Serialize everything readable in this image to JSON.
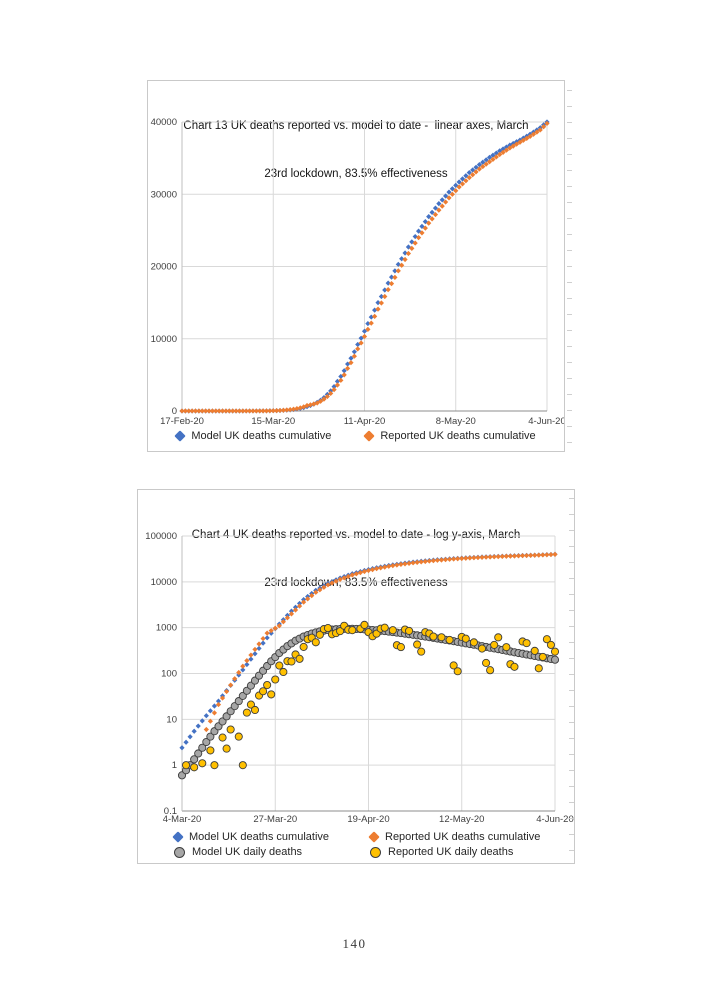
{
  "page": {
    "number": "140"
  },
  "series_data": {
    "model_cumulative": [
      [
        16,
        2.4
      ],
      [
        19,
        5.5
      ],
      [
        22,
        12
      ],
      [
        25,
        25
      ],
      [
        28,
        55
      ],
      [
        31,
        120
      ],
      [
        34,
        270
      ],
      [
        37,
        600
      ],
      [
        40,
        1200
      ],
      [
        43,
        2300
      ],
      [
        46,
        4100
      ],
      [
        49,
        6500
      ],
      [
        52,
        9200
      ],
      [
        55,
        12100
      ],
      [
        58,
        15000
      ],
      [
        61,
        17700
      ],
      [
        64,
        20300
      ],
      [
        67,
        22700
      ],
      [
        70,
        24900
      ],
      [
        73,
        26900
      ],
      [
        76,
        28700
      ],
      [
        79,
        30300
      ],
      [
        82,
        31700
      ],
      [
        85,
        33000
      ],
      [
        88,
        34100
      ],
      [
        91,
        35100
      ],
      [
        94,
        36000
      ],
      [
        97,
        36800
      ],
      [
        100,
        37500
      ],
      [
        103,
        38300
      ],
      [
        106,
        39200
      ],
      [
        108,
        40000
      ]
    ],
    "reported_cumulative": [
      [
        22,
        6
      ],
      [
        25,
        21
      ],
      [
        28,
        56
      ],
      [
        31,
        144
      ],
      [
        34,
        335
      ],
      [
        37,
        760
      ],
      [
        40,
        1100
      ],
      [
        43,
        2000
      ],
      [
        46,
        3600
      ],
      [
        49,
        5900
      ],
      [
        52,
        8600
      ],
      [
        55,
        11300
      ],
      [
        58,
        14100
      ],
      [
        61,
        16800
      ],
      [
        64,
        19400
      ],
      [
        67,
        21800
      ],
      [
        70,
        24000
      ],
      [
        73,
        26000
      ],
      [
        76,
        27800
      ],
      [
        79,
        29500
      ],
      [
        82,
        31000
      ],
      [
        85,
        32300
      ],
      [
        88,
        33500
      ],
      [
        91,
        34500
      ],
      [
        94,
        35500
      ],
      [
        97,
        36400
      ],
      [
        100,
        37200
      ],
      [
        103,
        38000
      ],
      [
        106,
        38900
      ],
      [
        108,
        39800
      ]
    ],
    "model_daily": [
      [
        16,
        0.6
      ],
      [
        18,
        1.0
      ],
      [
        20,
        1.8
      ],
      [
        22,
        3.2
      ],
      [
        24,
        5.5
      ],
      [
        26,
        9
      ],
      [
        28,
        15
      ],
      [
        30,
        25
      ],
      [
        32,
        42
      ],
      [
        34,
        70
      ],
      [
        36,
        115
      ],
      [
        38,
        185
      ],
      [
        40,
        280
      ],
      [
        42,
        395
      ],
      [
        44,
        520
      ],
      [
        46,
        640
      ],
      [
        48,
        745
      ],
      [
        50,
        830
      ],
      [
        52,
        890
      ],
      [
        54,
        925
      ],
      [
        56,
        945
      ],
      [
        58,
        945
      ],
      [
        60,
        930
      ],
      [
        62,
        905
      ],
      [
        64,
        875
      ],
      [
        66,
        840
      ],
      [
        68,
        800
      ],
      [
        70,
        760
      ],
      [
        72,
        720
      ],
      [
        74,
        680
      ],
      [
        76,
        640
      ],
      [
        78,
        600
      ],
      [
        80,
        560
      ],
      [
        82,
        525
      ],
      [
        84,
        490
      ],
      [
        86,
        455
      ],
      [
        88,
        425
      ],
      [
        90,
        395
      ],
      [
        92,
        365
      ],
      [
        94,
        340
      ],
      [
        96,
        315
      ],
      [
        98,
        290
      ],
      [
        100,
        270
      ],
      [
        102,
        250
      ],
      [
        104,
        232
      ],
      [
        106,
        215
      ],
      [
        108,
        200
      ]
    ],
    "reported_daily": [
      [
        17,
        1.0
      ],
      [
        19,
        0.9
      ],
      [
        21,
        1.1
      ],
      [
        23,
        2.1
      ],
      [
        24,
        1.0
      ],
      [
        26,
        4
      ],
      [
        27,
        2.3
      ],
      [
        28,
        6
      ],
      [
        30,
        4.2
      ],
      [
        31,
        1.0
      ],
      [
        32,
        14
      ],
      [
        33,
        21
      ],
      [
        34,
        16
      ],
      [
        35,
        33
      ],
      [
        36,
        41
      ],
      [
        37,
        56
      ],
      [
        38,
        35
      ],
      [
        39,
        74
      ],
      [
        40,
        149
      ],
      [
        41,
        108
      ],
      [
        42,
        186
      ],
      [
        43,
        183
      ],
      [
        44,
        260
      ],
      [
        45,
        209
      ],
      [
        46,
        380
      ],
      [
        47,
        560
      ],
      [
        48,
        605
      ],
      [
        49,
        480
      ],
      [
        50,
        700
      ],
      [
        51,
        930
      ],
      [
        52,
        980
      ],
      [
        53,
        717
      ],
      [
        54,
        760
      ],
      [
        55,
        840
      ],
      [
        56,
        1100
      ],
      [
        57,
        898
      ],
      [
        58,
        881
      ],
      [
        60,
        950
      ],
      [
        61,
        1152
      ],
      [
        62,
        796
      ],
      [
        63,
        650
      ],
      [
        64,
        740
      ],
      [
        65,
        950
      ],
      [
        66,
        998
      ],
      [
        68,
        880
      ],
      [
        69,
        415
      ],
      [
        70,
        377
      ],
      [
        71,
        910
      ],
      [
        72,
        850
      ],
      [
        74,
        430
      ],
      [
        75,
        300
      ],
      [
        76,
        798
      ],
      [
        77,
        745
      ],
      [
        78,
        640
      ],
      [
        80,
        618
      ],
      [
        82,
        540
      ],
      [
        83,
        150
      ],
      [
        84,
        112
      ],
      [
        85,
        630
      ],
      [
        86,
        575
      ],
      [
        88,
        478
      ],
      [
        90,
        350
      ],
      [
        91,
        170
      ],
      [
        92,
        118
      ],
      [
        93,
        420
      ],
      [
        94,
        615
      ],
      [
        96,
        376
      ],
      [
        97,
        160
      ],
      [
        98,
        140
      ],
      [
        100,
        500
      ],
      [
        101,
        460
      ],
      [
        103,
        312
      ],
      [
        104,
        130
      ],
      [
        105,
        230
      ],
      [
        106,
        560
      ],
      [
        107,
        420
      ],
      [
        108,
        300
      ]
    ]
  },
  "chart_data": [
    {
      "type": "scatter",
      "title": "Chart 13 UK deaths reported vs. model to date -  linear axes, March 23rd lockdown, 83.5% effectiveness",
      "title_lines": [
        "Chart 13 UK deaths reported vs. model to date -  linear axes, March",
        "23rd lockdown, 83.5% effectiveness"
      ],
      "log_y": false,
      "grid": true,
      "legend_position": "bottom",
      "xlabel": "",
      "ylabel": "",
      "x_tick_labels": [
        "17-Feb-20",
        "15-Mar-20",
        "11-Apr-20",
        "8-May-20",
        "4-Jun-20"
      ],
      "x_tick_days": [
        0,
        27,
        54,
        81,
        108
      ],
      "xlim_days": [
        0,
        108
      ],
      "y_ticks": [
        0,
        10000,
        20000,
        30000,
        40000
      ],
      "y_tick_labels": [
        "0",
        "10000",
        "20000",
        "30000",
        "40000"
      ],
      "ylim": [
        0,
        40000
      ],
      "series": [
        {
          "name": "Model UK deaths cumulative",
          "color": "#4472C4",
          "marker": "diamond",
          "mode": "daily",
          "data_key": "model_cumulative"
        },
        {
          "name": "Reported UK deaths cumulative",
          "color": "#ED7D31",
          "marker": "diamond",
          "mode": "daily",
          "data_key": "reported_cumulative"
        }
      ]
    },
    {
      "type": "scatter",
      "title": "Chart 4 UK deaths reported vs. model to date - log y-axis, March 23rd lockdown, 83.5% effectiveness",
      "title_lines": [
        "Chart 4 UK deaths reported vs. model to date - log y-axis, March",
        "23rd lockdown, 83.5% effectiveness"
      ],
      "log_y": true,
      "grid": true,
      "legend_position": "bottom",
      "xlabel": "",
      "ylabel": "",
      "x_tick_labels": [
        "4-Mar-20",
        "27-Mar-20",
        "19-Apr-20",
        "12-May-20",
        "4-Jun-20"
      ],
      "x_tick_days": [
        16,
        39,
        62,
        85,
        108
      ],
      "xlim_days": [
        16,
        108
      ],
      "y_ticks": [
        100000,
        10000,
        1000,
        100,
        10,
        1,
        0.1
      ],
      "y_tick_labels": [
        "100000",
        "10000",
        "1000",
        "100",
        "10",
        "1",
        "0.1"
      ],
      "ylim": [
        0.1,
        100000
      ],
      "series": [
        {
          "name": "Model UK deaths cumulative",
          "color": "#4472C4",
          "marker": "diamond",
          "mode": "daily",
          "data_key": "model_cumulative"
        },
        {
          "name": "Reported UK deaths cumulative",
          "color": "#ED7D31",
          "marker": "diamond",
          "mode": "daily",
          "data_key": "reported_cumulative"
        },
        {
          "name": "Model UK daily deaths",
          "color": "#A6A6A6",
          "marker": "circle",
          "outline": "#3d3d3d",
          "mode": "daily",
          "data_key": "model_daily"
        },
        {
          "name": "Reported UK daily deaths",
          "color": "#FFC000",
          "marker": "circle",
          "outline": "#3d3d3d",
          "mode": "points",
          "data_key": "reported_daily"
        }
      ]
    }
  ],
  "style": {
    "gridline_color": "#d9d9d9",
    "axis_color": "#8c8c8c",
    "tick_label_color": "#404040",
    "series_colors": {
      "model_cumulative": "#4472C4",
      "reported_cumulative": "#ED7D31",
      "model_daily": "#A6A6A6",
      "reported_daily": "#FFC000"
    }
  }
}
